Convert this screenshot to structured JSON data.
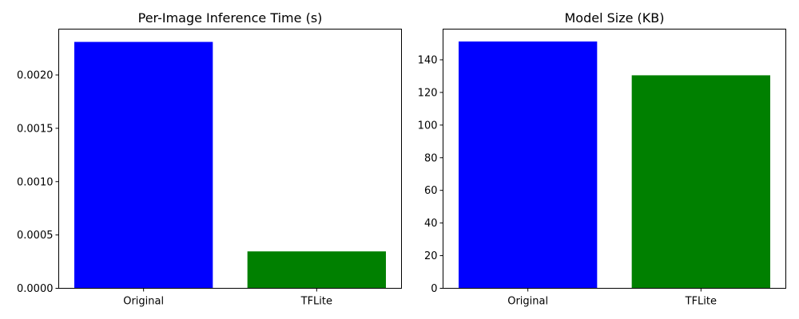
{
  "chart_data": [
    {
      "type": "bar",
      "title": "Per-Image Inference Time (s)",
      "xlabel": "",
      "ylabel": "",
      "categories": [
        "Original",
        "TFLite"
      ],
      "values": [
        0.00231,
        0.000346
      ],
      "colors": [
        "#0000ff",
        "#008000"
      ],
      "ylim": [
        0,
        0.00243
      ],
      "yticks": [
        0,
        0.0005,
        0.001,
        0.0015,
        0.002
      ],
      "ytick_labels": [
        "0.0000",
        "0.0005",
        "0.0010",
        "0.0015",
        "0.0020"
      ],
      "grid": false,
      "legend": "none"
    },
    {
      "type": "bar",
      "title": "Model Size (KB)",
      "xlabel": "",
      "ylabel": "",
      "categories": [
        "Original",
        "TFLite"
      ],
      "values": [
        151.2,
        130.5
      ],
      "colors": [
        "#0000ff",
        "#008000"
      ],
      "ylim": [
        0,
        158.8
      ],
      "yticks": [
        0,
        20,
        40,
        60,
        80,
        100,
        120,
        140
      ],
      "ytick_labels": [
        "0",
        "20",
        "40",
        "60",
        "80",
        "100",
        "120",
        "140"
      ],
      "grid": false,
      "legend": "none"
    }
  ]
}
